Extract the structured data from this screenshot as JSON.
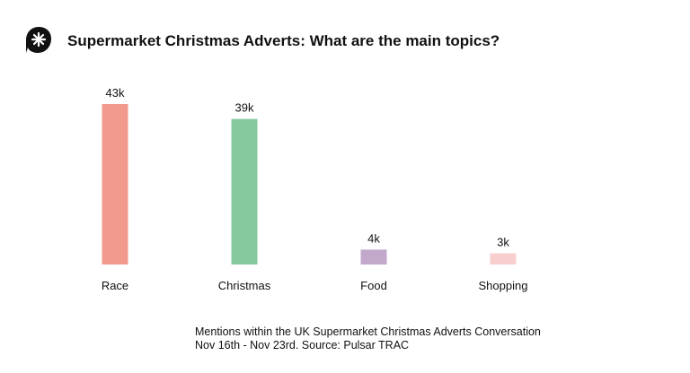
{
  "header": {
    "title": "Supermarket Christmas Adverts: What are the main topics?",
    "logo_icon": "pulsar-asterisk-logo"
  },
  "chart_data": {
    "type": "bar",
    "categories": [
      "Race",
      "Christmas",
      "Food",
      "Shopping"
    ],
    "values": [
      43,
      39,
      4,
      3
    ],
    "value_labels": [
      "43k",
      "39k",
      "4k",
      "3k"
    ],
    "unit": "k",
    "colors": [
      "#f39a8e",
      "#86c9a0",
      "#c2a8cb",
      "#f8cfcf"
    ],
    "title": "Supermarket Christmas Adverts: What are the main topics?",
    "xlabel": "",
    "ylabel": "",
    "ylim": [
      0,
      43
    ],
    "grid": false,
    "legend": "none"
  },
  "footnote": {
    "line1": "Mentions within the UK Supermarket Christmas Adverts Conversation",
    "line2": "Nov 16th - Nov 23rd. Source: Pulsar TRAC"
  }
}
